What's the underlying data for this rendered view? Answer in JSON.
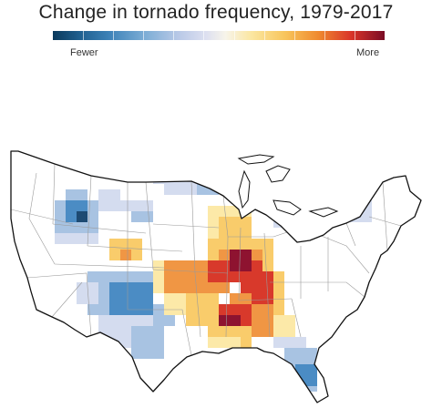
{
  "header": {
    "title": "Change in tornado frequency, 1979-2017"
  },
  "legend": {
    "low_label": "Fewer",
    "high_label": "More",
    "colors": [
      "#0b3a5c",
      "#3d82b8",
      "#b9c9e7",
      "#f7f4ea",
      "#f8c55c",
      "#d9342a",
      "#7a0c25"
    ]
  },
  "map": {
    "region": "Contiguous United States",
    "state_boundaries": true,
    "hot_spot": "mid-South",
    "cold_spot": "Colorado / Wyoming border",
    "palette": {
      "dark_blue": "#1d4a72",
      "mid_blue": "#4b8cc4",
      "light_blue": "#a8c3e2",
      "pale_blue": "#d4dcef",
      "pale_yellow": "#fce9a8",
      "yellow": "#f9cc6b",
      "orange": "#f09644",
      "red": "#d8392b",
      "dark_red": "#8e1330"
    }
  }
}
